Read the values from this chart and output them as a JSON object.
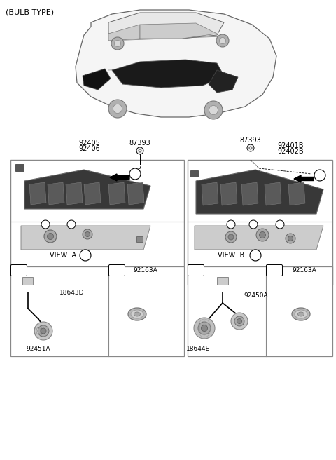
{
  "title": "(BULB TYPE)",
  "bg_color": "#ffffff",
  "fig_width": 4.8,
  "fig_height": 6.56,
  "dpi": 100,
  "left_part_label1": "92405",
  "left_part_label2": "92406",
  "left_screw_label": "87393",
  "right_screw_label": "87393",
  "right_part_label1": "92401B",
  "right_part_label2": "92402B",
  "view_a": "VIEW  A",
  "view_b": "VIEW  B",
  "label_a": "a",
  "label_b": "b",
  "label_c": "c",
  "label_d": "d",
  "part_92163A": "92163A",
  "part_18643D": "18643D",
  "part_92451A": "92451A",
  "part_92450A": "92450A",
  "part_18644E": "18644E"
}
